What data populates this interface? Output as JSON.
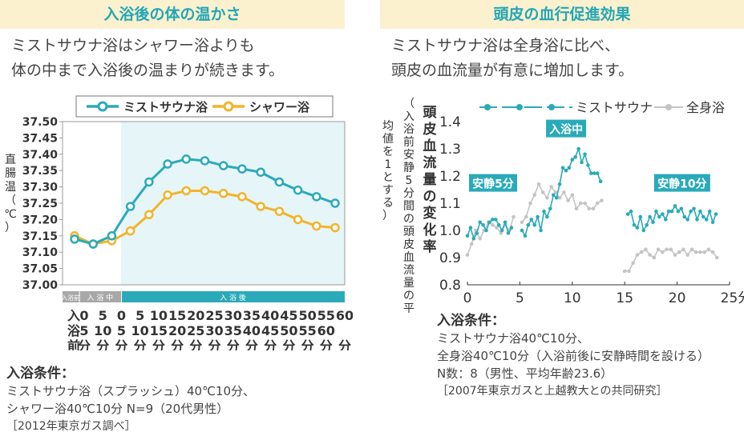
{
  "left": {
    "header": "入浴後の体の温かさ",
    "lead": [
      "ミストサウナ浴はシャワー浴よりも",
      "体の中まで入浴後の温まりが続きます。"
    ],
    "conditions_title": "入浴条件：",
    "conditions": [
      "ミストサウナ浴（スプラッシュ）40℃10分、",
      "シャワー浴40℃10分 N=9（20代男性）"
    ],
    "source": "［2012年東京ガス調べ］"
  },
  "right": {
    "header": "頭皮の血行促進効果",
    "lead": [
      "ミストサウナ浴は全身浴に比べ、",
      "頭皮の血流量が有意に増加します。"
    ],
    "conditions_title": "入浴条件：",
    "conditions": [
      "ミストサウナ浴40℃10分、",
      "全身浴40℃10分（入浴前後に安静時間を設ける）",
      "N数：8（男性、平均年齢23.6）"
    ],
    "source": "［2007年東京ガスと上越教大との共同研究］"
  },
  "colors": {
    "teal": "#2aaab9",
    "orange": "#f2b42a",
    "gray": "#c4c4c4",
    "header_bg": "#fbf1cf",
    "shade": "#e6f5f8"
  },
  "chart_data": [
    {
      "type": "line",
      "ylabel": "直腸温（℃）",
      "ylim": [
        37.0,
        37.5
      ],
      "yticks": [
        "37.50",
        "37.45",
        "37.40",
        "37.35",
        "37.30",
        "37.25",
        "37.20",
        "37.15",
        "37.10",
        "37.05",
        "37.00"
      ],
      "phase_labels": [
        "入浴前",
        "入 浴 中",
        "入 浴 後"
      ],
      "x_first_label": "入浴前",
      "x_ticks": [
        [
          "0",
          "分"
        ],
        [
          "5",
          "分"
        ],
        [
          "0",
          "分"
        ],
        [
          "5",
          "分"
        ],
        [
          "10",
          "分"
        ],
        [
          "15",
          "分"
        ],
        [
          "20",
          "分"
        ],
        [
          "25",
          "分"
        ],
        [
          "30",
          "分"
        ],
        [
          "35",
          "分"
        ],
        [
          "40",
          "分"
        ],
        [
          "45",
          "分"
        ],
        [
          "50",
          "分"
        ],
        [
          "55",
          "分"
        ],
        [
          "60",
          "分"
        ]
      ],
      "legend": "top",
      "series": [
        {
          "name": "ミストサウナ浴",
          "color": "#2aaab9",
          "values": [
            37.14,
            37.125,
            37.15,
            37.24,
            37.315,
            37.37,
            37.385,
            37.38,
            37.365,
            37.355,
            37.345,
            37.315,
            37.29,
            37.27,
            37.25
          ]
        },
        {
          "name": "シャワー浴",
          "color": "#f2b42a",
          "values": [
            37.15,
            37.125,
            37.135,
            37.165,
            37.215,
            37.275,
            37.288,
            37.288,
            37.28,
            37.27,
            37.24,
            37.225,
            37.2,
            37.18,
            37.175
          ]
        }
      ]
    },
    {
      "type": "line",
      "ylabel": "頭皮血流量の変化率",
      "ylabel_sub": "（入浴前安静5分間の頭皮血流量の平均値を1とする）",
      "xlim": [
        0,
        25
      ],
      "ylim": [
        0.8,
        1.4
      ],
      "xticks": [
        "0",
        "5",
        "10",
        "15",
        "20",
        "25分"
      ],
      "yticks": [
        "1.4",
        "1.3",
        "1.2",
        "1.1",
        "1.0",
        "0.9",
        "0.8"
      ],
      "annotations": [
        "安静5分",
        "入浴中",
        "安静10分"
      ],
      "legend": "top",
      "series": [
        {
          "name": "ミストサウナ",
          "color": "#2aaab9",
          "segments": [
            [
              [
                0,
                0.98
              ],
              [
                0.3,
                1.01
              ],
              [
                0.6,
                0.97
              ],
              [
                0.9,
                0.99
              ],
              [
                1.2,
                1.03
              ],
              [
                1.5,
                1.02
              ],
              [
                1.8,
                1.0
              ],
              [
                2.1,
                1.03
              ],
              [
                2.4,
                1.04
              ],
              [
                2.7,
                1.04
              ],
              [
                3.0,
                1.02
              ],
              [
                3.3,
                1.0
              ],
              [
                3.6,
                1.03
              ],
              [
                3.9,
                0.99
              ],
              [
                4.2,
                1.01
              ]
            ],
            [
              [
                5.2,
                1.0
              ],
              [
                5.5,
                0.98
              ],
              [
                5.8,
                1.02
              ],
              [
                6.1,
                1.04
              ],
              [
                6.4,
                1.02
              ],
              [
                6.7,
                1.05
              ],
              [
                7.0,
                1.0
              ],
              [
                7.3,
                1.07
              ],
              [
                7.6,
                1.05
              ],
              [
                7.9,
                1.08
              ],
              [
                8.2,
                1.13
              ],
              [
                8.5,
                1.12
              ],
              [
                8.8,
                1.17
              ],
              [
                9.1,
                1.23
              ],
              [
                9.4,
                1.22
              ],
              [
                9.7,
                1.23
              ],
              [
                10.0,
                1.26
              ],
              [
                10.3,
                1.27
              ],
              [
                10.6,
                1.3
              ],
              [
                10.9,
                1.25
              ],
              [
                11.2,
                1.28
              ],
              [
                11.5,
                1.24
              ],
              [
                11.8,
                1.21
              ],
              [
                12.1,
                1.21
              ],
              [
                12.4,
                1.21
              ],
              [
                12.7,
                1.18
              ]
            ],
            [
              [
                15.3,
                1.06
              ],
              [
                15.6,
                1.07
              ],
              [
                15.9,
                1.02
              ],
              [
                16.2,
                1.01
              ],
              [
                16.5,
                1.05
              ],
              [
                16.8,
                1.0
              ],
              [
                17.1,
                1.02
              ],
              [
                17.4,
                1.05
              ],
              [
                17.7,
                1.03
              ],
              [
                18.0,
                1.07
              ],
              [
                18.3,
                1.05
              ],
              [
                18.6,
                1.06
              ],
              [
                18.9,
                1.04
              ],
              [
                19.2,
                1.07
              ],
              [
                19.5,
                1.07
              ],
              [
                19.8,
                1.09
              ],
              [
                20.1,
                1.07
              ],
              [
                20.4,
                1.08
              ],
              [
                20.7,
                1.05
              ],
              [
                21.0,
                1.04
              ],
              [
                21.3,
                1.07
              ],
              [
                21.6,
                1.08
              ],
              [
                21.9,
                1.04
              ],
              [
                22.2,
                1.07
              ],
              [
                22.5,
                1.05
              ],
              [
                22.8,
                1.04
              ],
              [
                23.1,
                1.07
              ],
              [
                23.4,
                1.03
              ],
              [
                23.7,
                1.06
              ]
            ]
          ]
        },
        {
          "name": "全身浴",
          "color": "#c4c4c4",
          "segments": [
            [
              [
                0,
                0.91
              ],
              [
                0.4,
                0.95
              ],
              [
                0.8,
                1.0
              ],
              [
                1.2,
                0.97
              ],
              [
                1.6,
                1.0
              ],
              [
                2.0,
                1.03
              ],
              [
                2.4,
                1.02
              ],
              [
                2.8,
                1.01
              ],
              [
                3.2,
                0.99
              ],
              [
                3.6,
                1.02
              ],
              [
                4.0,
                1.0
              ],
              [
                4.4,
                1.05
              ]
            ],
            [
              [
                5.2,
                1.03
              ],
              [
                5.6,
                1.05
              ],
              [
                6.0,
                1.1
              ],
              [
                6.4,
                1.13
              ],
              [
                6.8,
                1.17
              ],
              [
                7.2,
                1.14
              ],
              [
                7.6,
                1.12
              ],
              [
                8.0,
                1.16
              ],
              [
                8.4,
                1.14
              ],
              [
                8.8,
                1.12
              ],
              [
                9.2,
                1.14
              ],
              [
                9.6,
                1.11
              ],
              [
                10.0,
                1.13
              ],
              [
                10.4,
                1.08
              ],
              [
                10.8,
                1.1
              ],
              [
                11.2,
                1.1
              ],
              [
                11.6,
                1.08
              ],
              [
                12.0,
                1.08
              ],
              [
                12.4,
                1.1
              ],
              [
                12.8,
                1.11
              ]
            ],
            [
              [
                15.0,
                0.85
              ],
              [
                15.4,
                0.85
              ],
              [
                15.8,
                0.88
              ],
              [
                16.2,
                0.91
              ],
              [
                16.6,
                0.92
              ],
              [
                17.0,
                0.93
              ],
              [
                17.4,
                0.91
              ],
              [
                17.8,
                0.9
              ],
              [
                18.2,
                0.93
              ],
              [
                18.6,
                0.92
              ],
              [
                19.0,
                0.93
              ],
              [
                19.4,
                0.93
              ],
              [
                19.8,
                0.91
              ],
              [
                20.2,
                0.92
              ],
              [
                20.6,
                0.93
              ],
              [
                21.0,
                0.91
              ],
              [
                21.4,
                0.93
              ],
              [
                21.8,
                0.92
              ],
              [
                22.2,
                0.92
              ],
              [
                22.6,
                0.92
              ],
              [
                23.0,
                0.93
              ],
              [
                23.4,
                0.92
              ],
              [
                23.8,
                0.9
              ]
            ]
          ]
        }
      ]
    }
  ]
}
